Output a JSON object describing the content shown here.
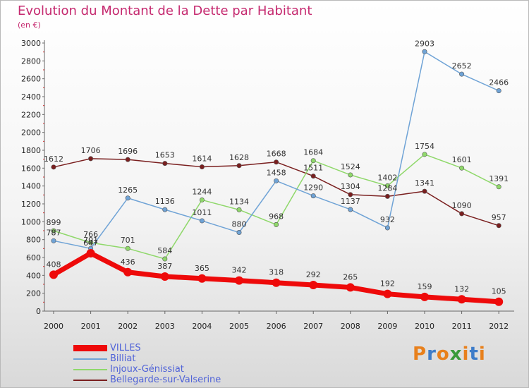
{
  "title": "Evolution du Montant de la Dette par Habitant",
  "subtitle": "(en €)",
  "brand": {
    "text": "Proxiti",
    "letters": [
      {
        "char": "P",
        "color": "#e8801c"
      },
      {
        "char": "r",
        "color": "#3d7cc9"
      },
      {
        "char": "o",
        "color": "#e8801c"
      },
      {
        "char": "x",
        "color": "#3a9a3a"
      },
      {
        "char": "i",
        "color": "#e8801c"
      },
      {
        "char": "t",
        "color": "#3d7cc9"
      },
      {
        "char": "i",
        "color": "#e8801c"
      }
    ]
  },
  "chart_data": {
    "type": "line",
    "categories": [
      "2000",
      "2001",
      "2002",
      "2003",
      "2004",
      "2005",
      "2006",
      "2007",
      "2008",
      "2009",
      "2010",
      "2011",
      "2012"
    ],
    "ylim": [
      0,
      3000
    ],
    "yticks": [
      0,
      200,
      400,
      600,
      800,
      1000,
      1200,
      1400,
      1600,
      1800,
      2000,
      2200,
      2400,
      2600,
      2800,
      3000
    ],
    "grid": false,
    "legend_position": "bottom-left",
    "series": [
      {
        "name": "Bellegarde-sur-Valserine",
        "color": "#7a1f1f",
        "values": [
          1612,
          1706,
          1696,
          1653,
          1614,
          1628,
          1668,
          1511,
          1304,
          1284,
          1341,
          1090,
          957
        ]
      },
      {
        "name": "Injoux-Génissiat",
        "color": "#8fd86a",
        "values": [
          899,
          766,
          701,
          584,
          1244,
          1134,
          968,
          1684,
          1524,
          1402,
          1754,
          1601,
          1391
        ]
      },
      {
        "name": "Billiat",
        "color": "#6fa3d6",
        "values": [
          787,
          701,
          1265,
          1136,
          1011,
          880,
          1458,
          1290,
          1137,
          932,
          2903,
          2652,
          2466
        ]
      },
      {
        "name": "VILLES",
        "color": "#ee0a0a",
        "values": [
          408,
          647,
          436,
          387,
          365,
          342,
          318,
          292,
          265,
          192,
          159,
          132,
          105
        ]
      }
    ]
  }
}
